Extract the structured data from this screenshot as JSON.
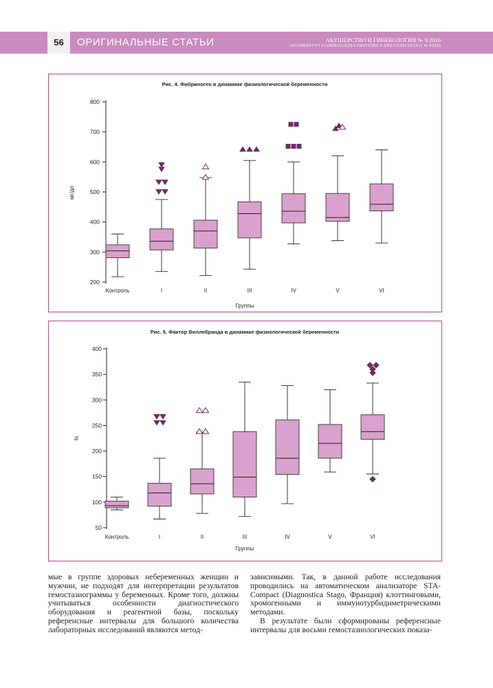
{
  "header": {
    "page_number": "56",
    "section": "ОРИГИНАЛЬНЫЕ СТАТЬИ",
    "journal": "АКУШЕРСТВО И ГИНЕКОЛОГИЯ № 9/2016",
    "journal_en": "AKUSHERSTVO I GINEKOLOGIYA/OBSTETRICS AND GYNECOLOGY № 9/2016"
  },
  "colors": {
    "header": "#c98bbd",
    "box_fill": "#d9a1cb",
    "marker": "#6d2c64",
    "frame": "#b0478e"
  },
  "chart_data": [
    {
      "type": "box",
      "title": "Рис. 4. Фибриноген в динамике физиологической беременности",
      "xlabel": "Группы",
      "ylabel": "мг/дл",
      "ylim": [
        200,
        800
      ],
      "yticks": [
        200,
        300,
        400,
        500,
        600,
        700,
        800
      ],
      "categories": [
        "Контроль",
        "I",
        "II",
        "III",
        "IV",
        "V",
        "VI"
      ],
      "boxes": [
        {
          "min": 218,
          "q1": 281,
          "median": 304,
          "q3": 324,
          "max": 360
        },
        {
          "min": 235,
          "q1": 307,
          "median": 336,
          "q3": 377,
          "max": 475
        },
        {
          "min": 222,
          "q1": 313,
          "median": 370,
          "q3": 406,
          "max": 548
        },
        {
          "min": 243,
          "q1": 347,
          "median": 428,
          "q3": 467,
          "max": 605
        },
        {
          "min": 327,
          "q1": 397,
          "median": 436,
          "q3": 494,
          "max": 600
        },
        {
          "min": 338,
          "q1": 402,
          "median": 415,
          "q3": 495,
          "max": 620
        },
        {
          "min": 330,
          "q1": 437,
          "median": 459,
          "q3": 527,
          "max": 640
        }
      ],
      "outliers": [
        {
          "group": 1,
          "value": 590,
          "marker": "triangle-down",
          "dx": 0
        },
        {
          "group": 1,
          "value": 575,
          "marker": "triangle-down",
          "dx": 0
        },
        {
          "group": 1,
          "value": 532,
          "marker": "triangle-down",
          "dx": -4
        },
        {
          "group": 1,
          "value": 532,
          "marker": "triangle-down",
          "dx": 5
        },
        {
          "group": 1,
          "value": 500,
          "marker": "triangle-down",
          "dx": -4
        },
        {
          "group": 1,
          "value": 500,
          "marker": "triangle-down",
          "dx": 5
        },
        {
          "group": 2,
          "value": 585,
          "marker": "triangle-open",
          "dx": 0
        },
        {
          "group": 2,
          "value": 550,
          "marker": "triangle-open",
          "dx": 0
        },
        {
          "group": 3,
          "value": 643,
          "marker": "triangle",
          "dx": -10
        },
        {
          "group": 3,
          "value": 643,
          "marker": "triangle",
          "dx": 0
        },
        {
          "group": 3,
          "value": 643,
          "marker": "triangle",
          "dx": 10
        },
        {
          "group": 4,
          "value": 725,
          "marker": "square",
          "dx": -4
        },
        {
          "group": 4,
          "value": 725,
          "marker": "square",
          "dx": 4
        },
        {
          "group": 4,
          "value": 652,
          "marker": "square",
          "dx": -8
        },
        {
          "group": 4,
          "value": 652,
          "marker": "square",
          "dx": 0
        },
        {
          "group": 4,
          "value": 652,
          "marker": "square",
          "dx": 8
        },
        {
          "group": 5,
          "value": 722,
          "marker": "triangle",
          "dx": 2
        },
        {
          "group": 5,
          "value": 712,
          "marker": "triangle",
          "dx": -3
        },
        {
          "group": 5,
          "value": 717,
          "marker": "triangle-open",
          "dx": 7
        }
      ]
    },
    {
      "type": "box",
      "title": "Рис. 5. Фактор Виллебранда в динамике физиологической беременности",
      "xlabel": "Группы",
      "ylabel": "%",
      "ylim": [
        50,
        400
      ],
      "yticks": [
        50,
        100,
        150,
        200,
        250,
        300,
        350,
        400
      ],
      "categories": [
        "Контроль",
        "I",
        "II",
        "III",
        "IV",
        "V",
        "VI"
      ],
      "boxes": [
        {
          "min": 85,
          "q1": 89,
          "median": 93,
          "q3": 102,
          "max": 110
        },
        {
          "min": 67,
          "q1": 92,
          "median": 118,
          "q3": 137,
          "max": 186
        },
        {
          "min": 78,
          "q1": 116,
          "median": 136,
          "q3": 165,
          "max": 237
        },
        {
          "min": 72,
          "q1": 110,
          "median": 149,
          "q3": 238,
          "max": 335
        },
        {
          "min": 97,
          "q1": 154,
          "median": 186,
          "q3": 261,
          "max": 328
        },
        {
          "min": 159,
          "q1": 186,
          "median": 215,
          "q3": 252,
          "max": 320
        },
        {
          "min": 155,
          "q1": 223,
          "median": 238,
          "q3": 271,
          "max": 333
        }
      ],
      "outliers": [
        {
          "group": 1,
          "value": 267,
          "marker": "triangle-down",
          "dx": -4
        },
        {
          "group": 1,
          "value": 267,
          "marker": "triangle-down",
          "dx": 5
        },
        {
          "group": 1,
          "value": 255,
          "marker": "triangle-down",
          "dx": -4
        },
        {
          "group": 1,
          "value": 255,
          "marker": "triangle-down",
          "dx": 5
        },
        {
          "group": 2,
          "value": 280,
          "marker": "triangle-open",
          "dx": -4
        },
        {
          "group": 2,
          "value": 280,
          "marker": "triangle-open",
          "dx": 5
        },
        {
          "group": 2,
          "value": 239,
          "marker": "triangle-open",
          "dx": -4
        },
        {
          "group": 2,
          "value": 239,
          "marker": "triangle-open",
          "dx": 5
        },
        {
          "group": 6,
          "value": 368,
          "marker": "diamond",
          "dx": -4
        },
        {
          "group": 6,
          "value": 368,
          "marker": "diamond",
          "dx": 5
        },
        {
          "group": 6,
          "value": 360,
          "marker": "diamond",
          "dx": 0
        },
        {
          "group": 6,
          "value": 353,
          "marker": "diamond",
          "dx": 0
        },
        {
          "group": 6,
          "value": 145,
          "marker": "diamond",
          "dx": 0
        }
      ]
    }
  ],
  "body": {
    "col1": "мые в группе здоровых небеременных женщин и мужчин, не подходят для интерпретации результатов гемостазиограммы у беременных. Кроме того, должны учитываться особенности диагностического оборудования и реагентной базы, поскольку референсные интервалы для большого количества лабораторных исследований являются метод-",
    "col2_p1": "зависимыми. Так, в данной работе исследования проводились на автоматическом анализаторе STA-Compact (Diagnostica Stago, Франция) клоттинговыми, хромогенными и иммунотурбидиметрическими методами.",
    "col2_p2": "В результате были сформированы референсные интервалы для восьми гемостазиологических показа-"
  }
}
